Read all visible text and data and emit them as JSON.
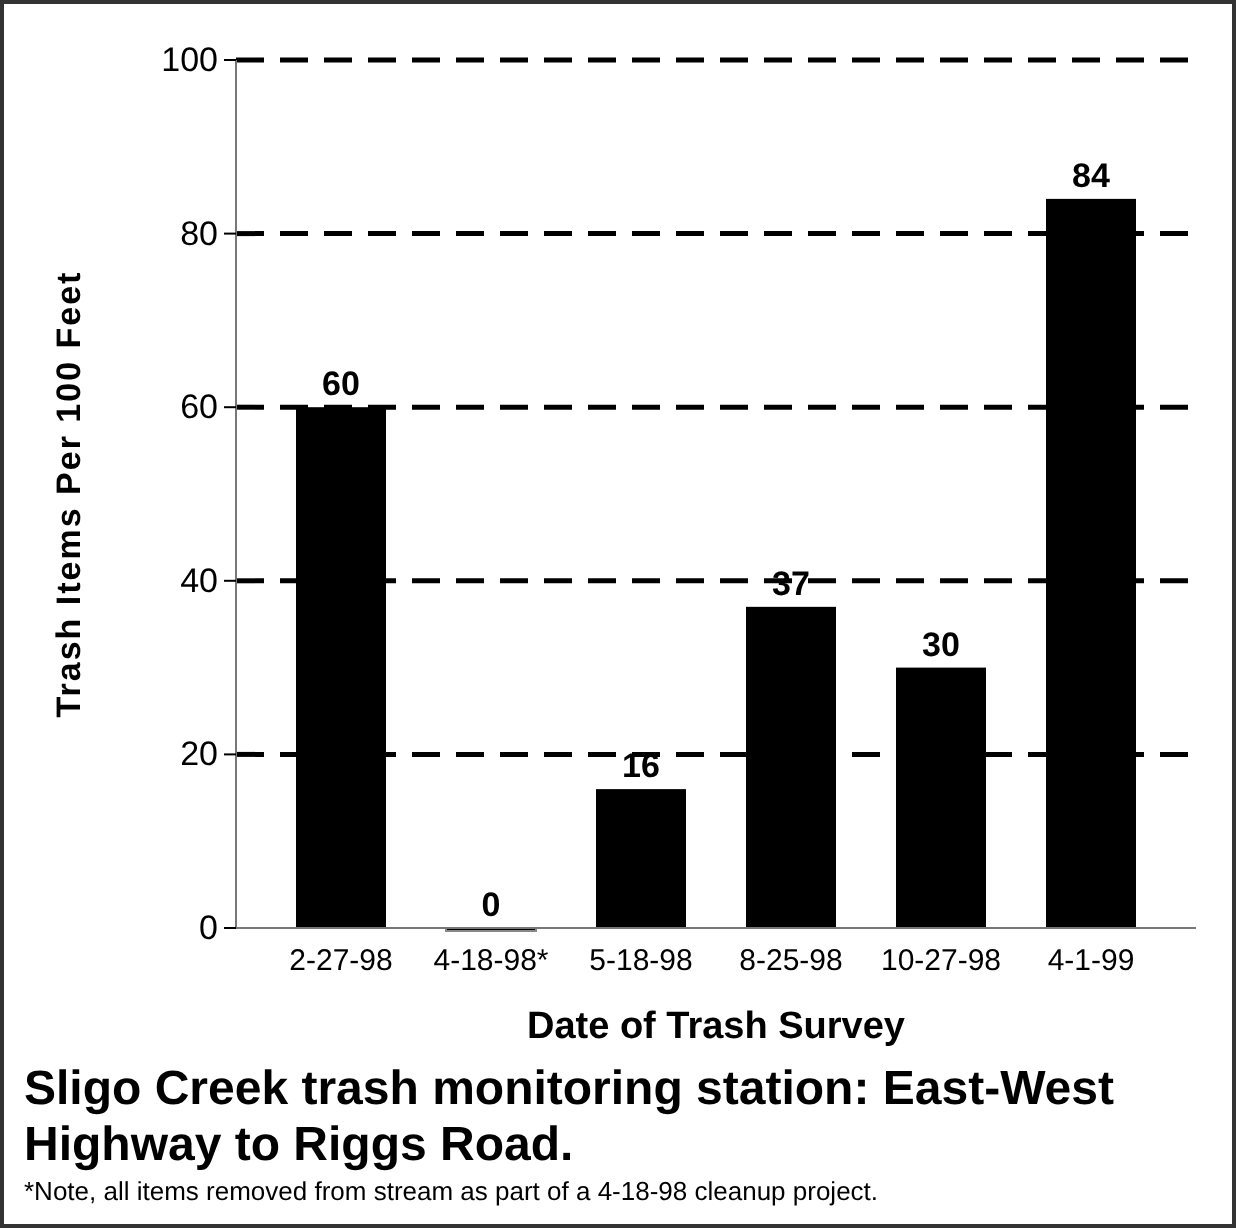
{
  "chart_data": {
    "type": "bar",
    "title": "Sligo Creek trash monitoring station: East-West Highway to Riggs Road.",
    "xlabel": "Date of Trash Survey",
    "ylabel": "Trash Items Per 100 Feet",
    "categories": [
      "2-27-98",
      "4-18-98*",
      "5-18-98",
      "8-25-98",
      "10-27-98",
      "4-1-99"
    ],
    "values": [
      60,
      0,
      16,
      37,
      30,
      84
    ],
    "color": "#000000",
    "ylim": [
      0,
      100
    ],
    "yticks": [
      0,
      20,
      40,
      60,
      80,
      100
    ],
    "grid": "y",
    "data_labels": true,
    "annotations": [
      "*Note, all items removed from stream as part of a 4-18-98 cleanup project."
    ]
  }
}
